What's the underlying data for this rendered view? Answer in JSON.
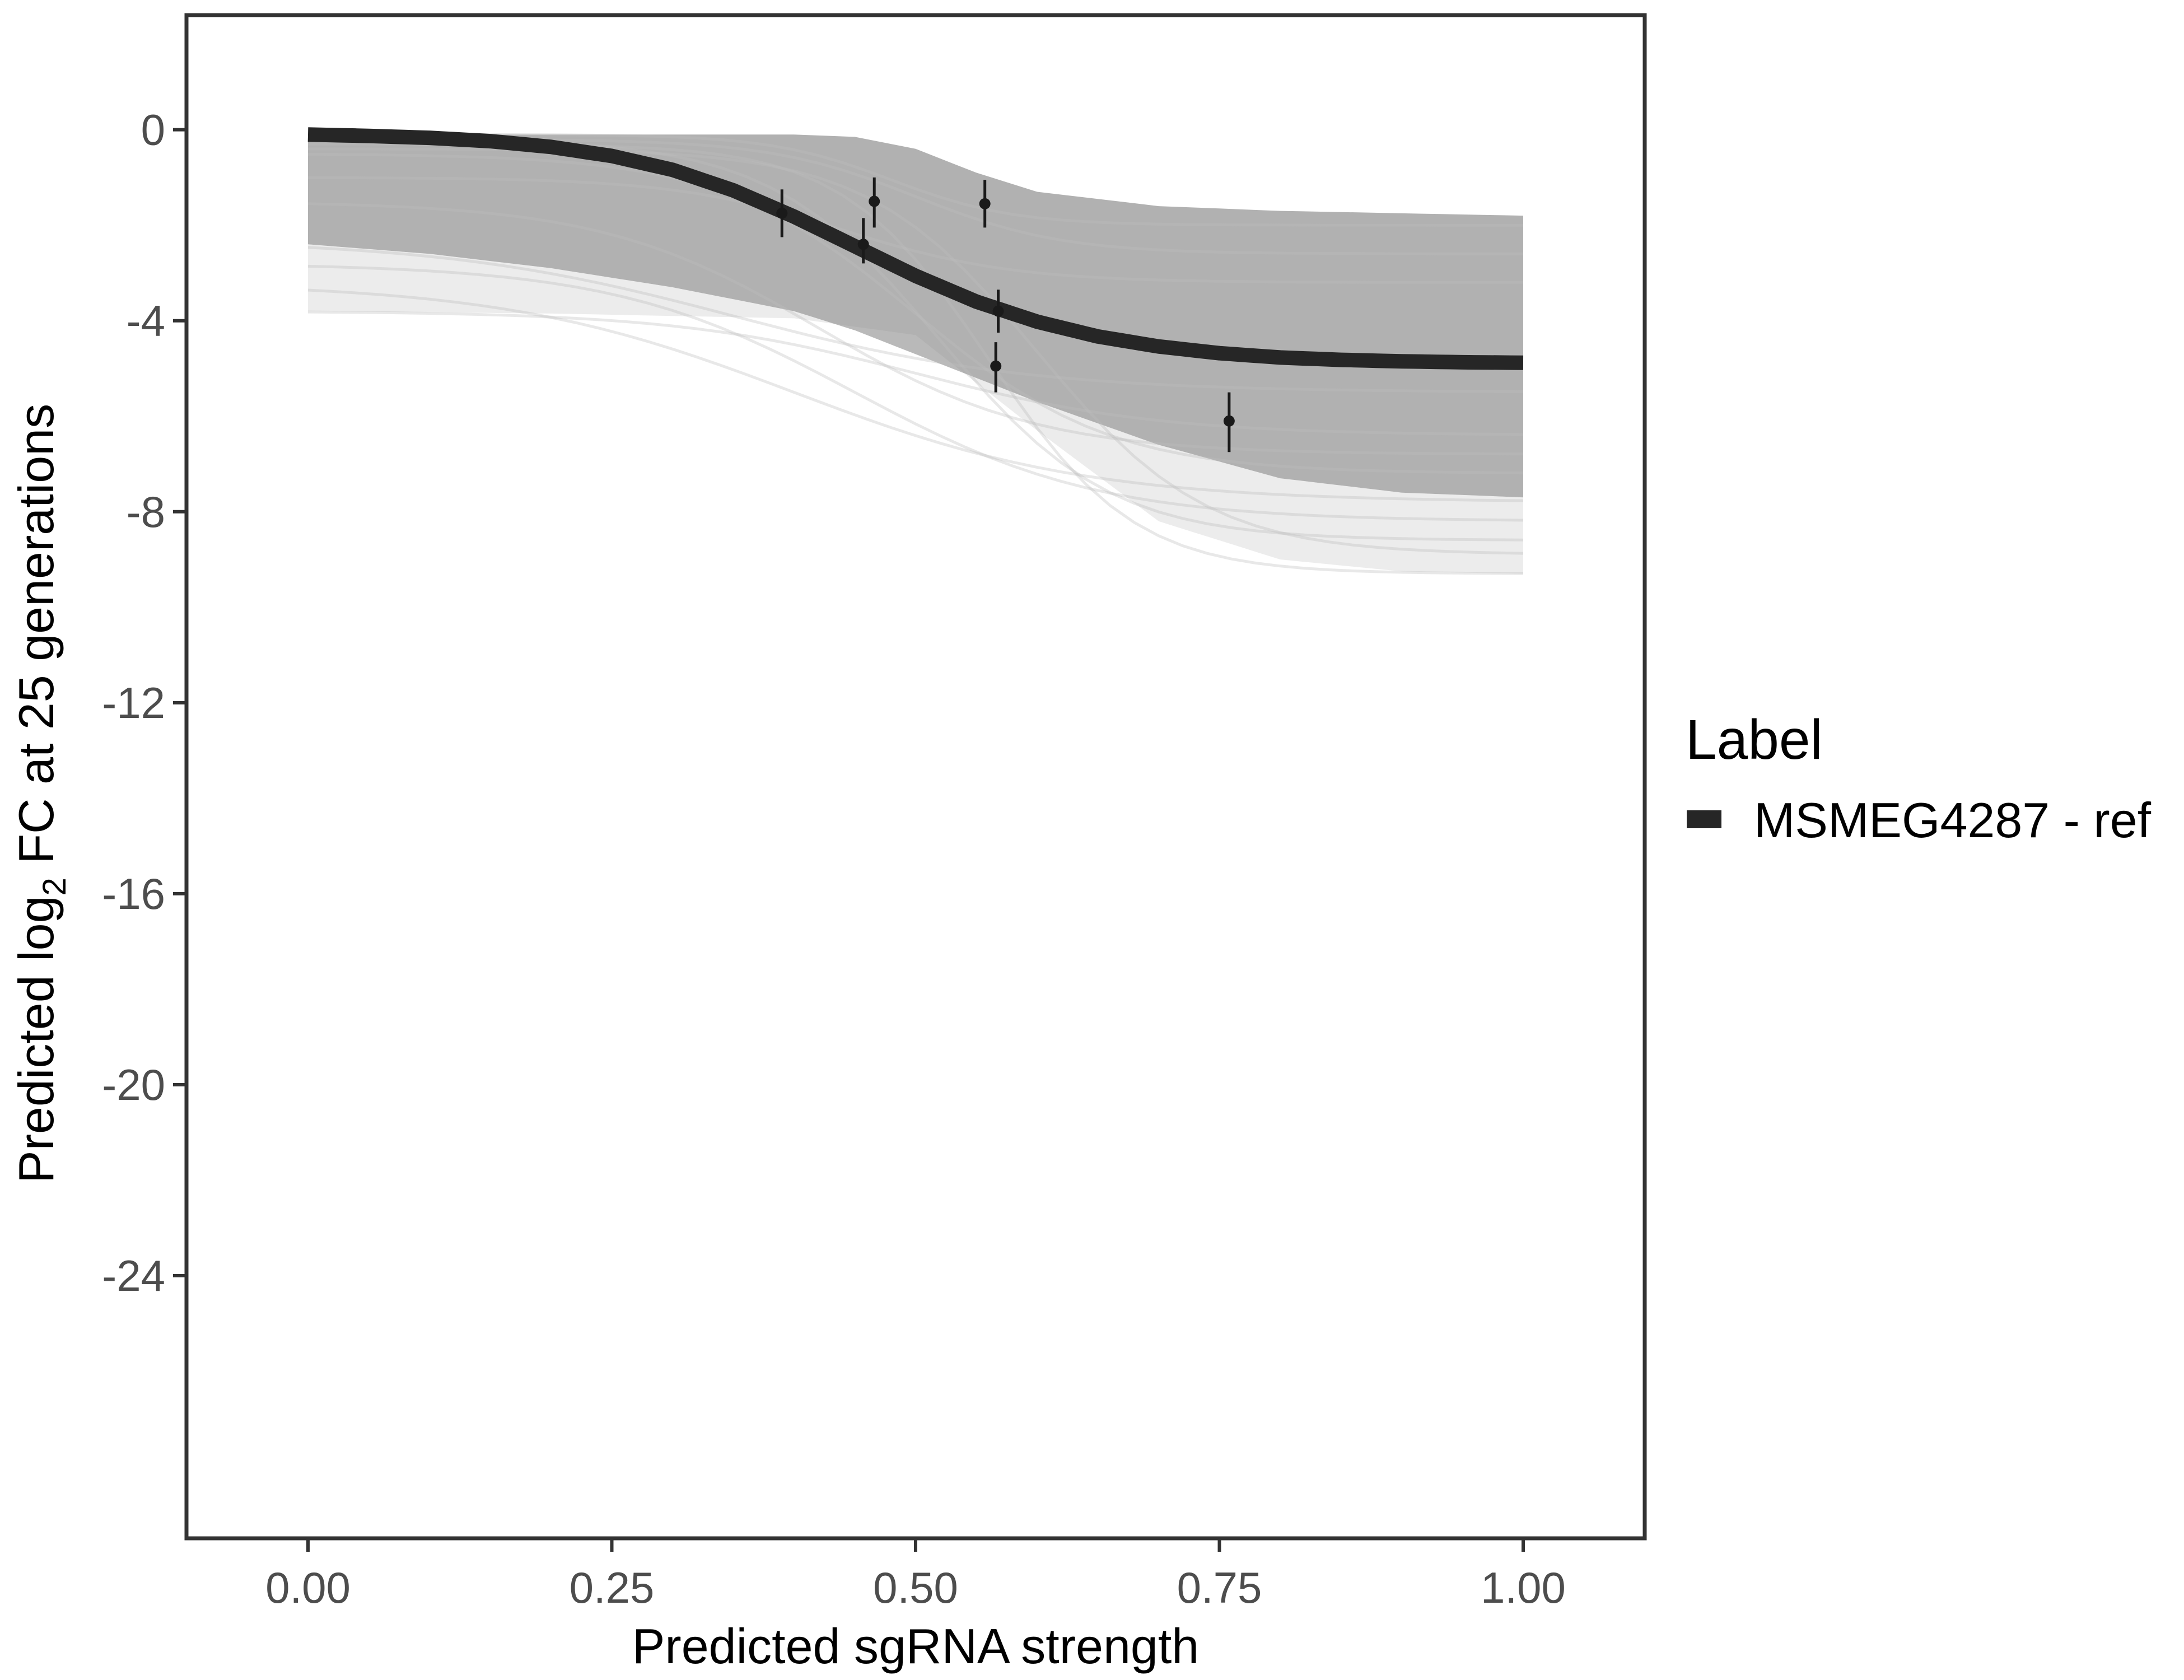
{
  "chart_data": {
    "type": "line",
    "xlabel": "Predicted sgRNA strength",
    "ylabel_prefix": "Predicted  log",
    "ylabel_sub": "2",
    "ylabel_suffix": " FC at 25 generations",
    "xlim": [
      -0.1,
      1.1
    ],
    "ylim": [
      -29.5,
      2.4
    ],
    "x_ticks": [
      0.0,
      0.25,
      0.5,
      0.75,
      1.0
    ],
    "x_tick_labels": [
      "0.00",
      "0.25",
      "0.50",
      "0.75",
      "1.00"
    ],
    "y_ticks": [
      0,
      -4,
      -8,
      -12,
      -16,
      -20,
      -24
    ],
    "y_tick_labels": [
      "0",
      "-4",
      "-8",
      "-12",
      "-16",
      "-20",
      "-24"
    ],
    "grid": false,
    "legend": {
      "title": "Label",
      "position": "right",
      "entries": [
        {
          "name": "MSMEG4287 - ref",
          "color": "#262626"
        }
      ]
    },
    "reference_curve": {
      "name": "MSMEG4287 - ref",
      "color": "#262626",
      "x": [
        0.0,
        0.05,
        0.1,
        0.15,
        0.2,
        0.25,
        0.3,
        0.35,
        0.4,
        0.45,
        0.5,
        0.55,
        0.6,
        0.65,
        0.7,
        0.75,
        0.8,
        0.85,
        0.9,
        0.95,
        1.0
      ],
      "y": [
        -0.1,
        -0.13,
        -0.17,
        -0.24,
        -0.36,
        -0.55,
        -0.84,
        -1.27,
        -1.82,
        -2.44,
        -3.06,
        -3.6,
        -4.02,
        -4.33,
        -4.54,
        -4.68,
        -4.77,
        -4.82,
        -4.85,
        -4.87,
        -4.88
      ]
    },
    "posterior_band": {
      "color": "#aaaaaa",
      "upper": {
        "x": [
          0.0,
          0.1,
          0.2,
          0.3,
          0.4,
          0.45,
          0.5,
          0.55,
          0.6,
          0.7,
          0.8,
          0.9,
          1.0
        ],
        "y": [
          -0.1,
          -0.1,
          -0.1,
          -0.1,
          -0.1,
          -0.15,
          -0.4,
          -0.9,
          -1.3,
          -1.6,
          -1.7,
          -1.75,
          -1.8
        ]
      },
      "lower": {
        "x": [
          0.0,
          0.1,
          0.2,
          0.3,
          0.4,
          0.45,
          0.5,
          0.55,
          0.6,
          0.7,
          0.8,
          0.9,
          1.0
        ],
        "y": [
          -2.4,
          -2.6,
          -2.9,
          -3.3,
          -3.8,
          -4.2,
          -4.7,
          -5.2,
          -5.7,
          -6.6,
          -7.3,
          -7.6,
          -7.7
        ]
      },
      "outer_lower": {
        "x": [
          0.0,
          0.2,
          0.4,
          0.5,
          0.6,
          0.7,
          0.8,
          0.9,
          1.0
        ],
        "y": [
          -3.8,
          -3.85,
          -3.95,
          -4.3,
          -6.3,
          -8.2,
          -9.0,
          -9.25,
          -9.3
        ]
      }
    },
    "points": [
      {
        "x": 0.39,
        "y": -1.75,
        "lo": -2.25,
        "hi": -1.25
      },
      {
        "x": 0.457,
        "y": -2.4,
        "lo": -2.8,
        "hi": -1.85
      },
      {
        "x": 0.466,
        "y": -1.5,
        "lo": -2.05,
        "hi": -1.0
      },
      {
        "x": 0.557,
        "y": -1.55,
        "lo": -2.05,
        "hi": -1.05
      },
      {
        "x": 0.568,
        "y": -3.8,
        "lo": -4.25,
        "hi": -3.35
      },
      {
        "x": 0.566,
        "y": -4.95,
        "lo": -5.5,
        "hi": -4.45
      },
      {
        "x": 0.758,
        "y": -6.1,
        "lo": -6.75,
        "hi": -5.5
      }
    ]
  }
}
